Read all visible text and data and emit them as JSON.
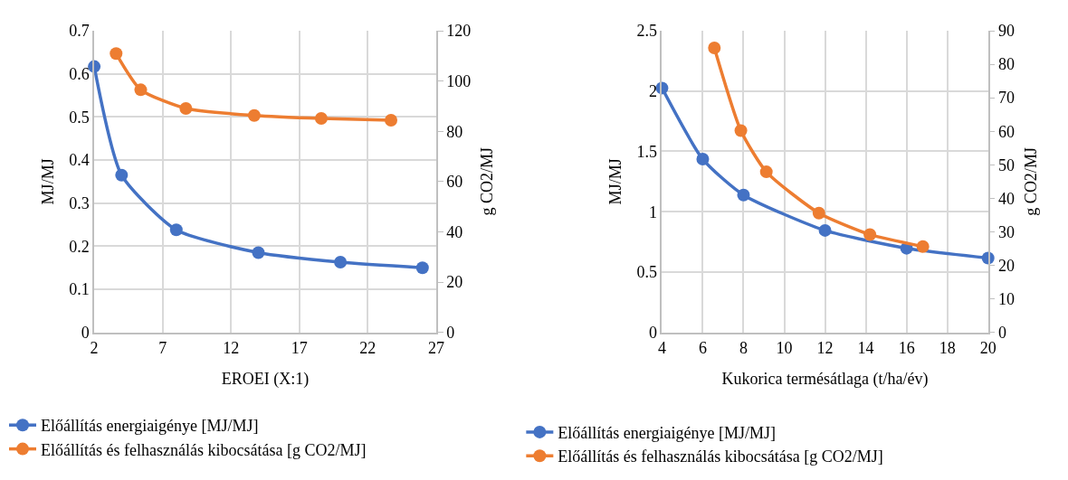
{
  "chart_data": [
    {
      "type": "line",
      "xlabel": "EROEI (X:1)",
      "ylabel": "MJ/MJ",
      "y2label": "g CO2/MJ",
      "xlim": [
        2,
        27
      ],
      "xticks": [
        2,
        7,
        12,
        17,
        22,
        27
      ],
      "ylim": [
        0,
        0.7
      ],
      "yticks": [
        0,
        0.1,
        0.2,
        0.3,
        0.4,
        0.5,
        0.6,
        0.7
      ],
      "y2lim": [
        0,
        120
      ],
      "y2ticks": [
        0,
        20,
        40,
        60,
        80,
        100,
        120
      ],
      "grid": true,
      "legend": "bottom",
      "marker": "circle",
      "line_style": "solid",
      "series": [
        {
          "name": "Előállítás energiaigénye [MJ/MJ]",
          "color": "#4472c4",
          "x": [
            2,
            4,
            8,
            14,
            20,
            26
          ],
          "values": [
            0.617,
            0.365,
            0.238,
            0.185,
            0.163,
            0.15
          ]
        },
        {
          "name": "Előállítás és felhasználás kibocsátása [g CO2/MJ]",
          "color": "#ed7d31",
          "axis": "y2",
          "x": [
            3.6,
            5.4,
            8.7,
            13.7,
            18.6,
            23.7
          ],
          "values": [
            110.9,
            96.5,
            89.1,
            86.3,
            85.1,
            84.4
          ]
        }
      ]
    },
    {
      "type": "line",
      "xlabel": "Kukorica termésátlaga (t/ha/év)",
      "ylabel": "MJ/MJ",
      "y2label": "g CO2/MJ",
      "xlim": [
        4,
        20
      ],
      "xticks": [
        4,
        6,
        8,
        10,
        12,
        14,
        16,
        18,
        20
      ],
      "ylim": [
        0,
        2.5
      ],
      "yticks": [
        0,
        0.5,
        1,
        1.5,
        2,
        2.5
      ],
      "y2lim": [
        0,
        90
      ],
      "y2ticks": [
        0,
        10,
        20,
        30,
        40,
        50,
        60,
        70,
        80,
        90
      ],
      "grid": true,
      "legend": "bottom",
      "marker": "circle",
      "line_style": "solid",
      "series": [
        {
          "name": "Előállítás energiaigénye [MJ/MJ]",
          "color": "#4472c4",
          "x": [
            4,
            6,
            8,
            12,
            16,
            20
          ],
          "values": [
            2.025,
            1.436,
            1.139,
            0.845,
            0.697,
            0.616
          ]
        },
        {
          "name": "Előállítás és felhasználás kibocsátása [g CO2/MJ]",
          "color": "#ed7d31",
          "axis": "y2",
          "x": [
            6.57,
            7.87,
            9.12,
            11.7,
            14.2,
            16.8
          ],
          "values": [
            84.9,
            60.2,
            47.9,
            35.6,
            29.2,
            25.6
          ]
        }
      ]
    }
  ]
}
